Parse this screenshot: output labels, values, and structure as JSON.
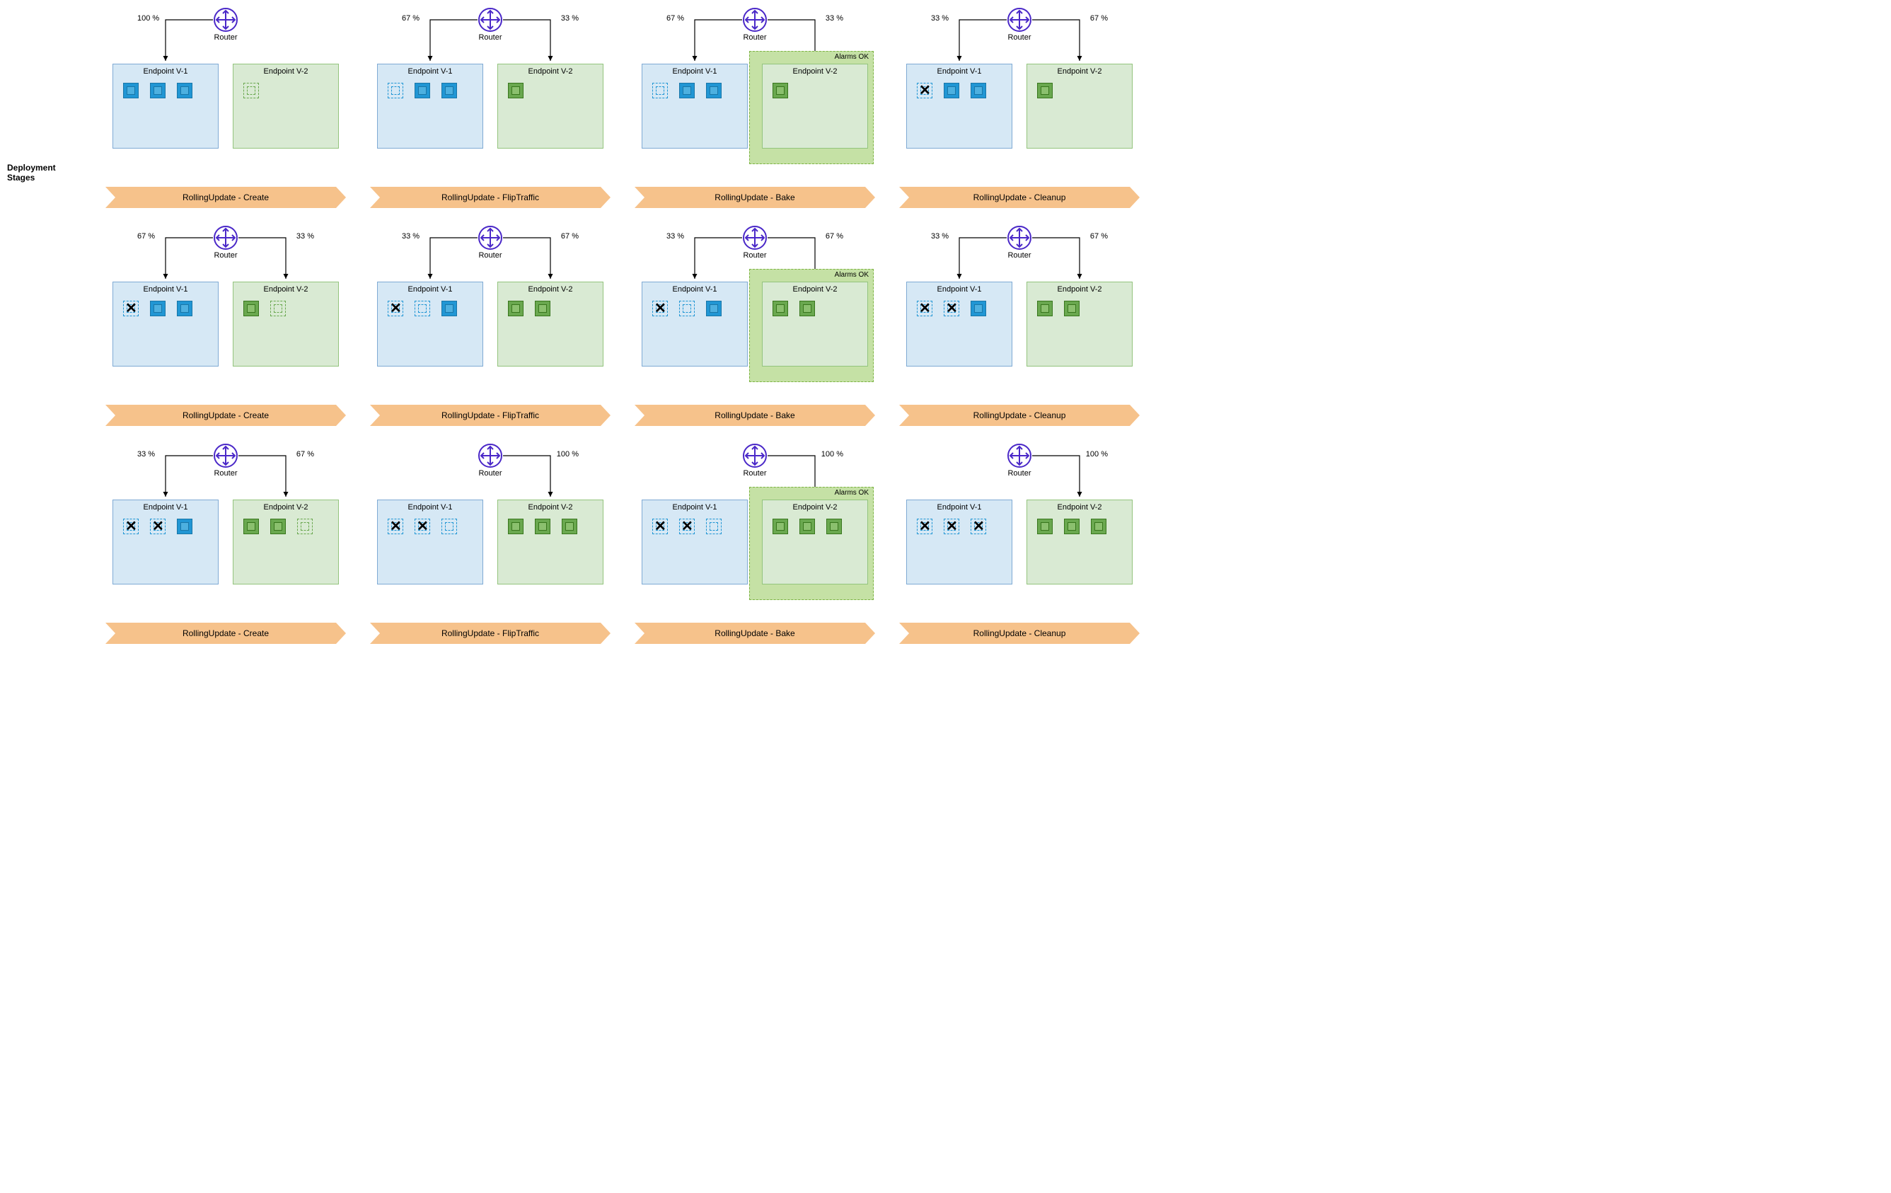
{
  "router_label": "Router",
  "endpoint_v1_label": "Endpoint V-1",
  "endpoint_v2_label": "Endpoint V-2",
  "alarms_ok_label": "Alarms OK",
  "deployment_stages_label": "Deployment Stages",
  "router_icon_color": "#4a28c8",
  "arrow_color": "#000000",
  "blue_box": {
    "fill": "#d6e8f5",
    "stroke": "#7faad4"
  },
  "green_box": {
    "fill": "#d9ead3",
    "stroke": "#93c47d"
  },
  "alarm_box": {
    "fill": "#c5e1a5",
    "stroke": "#7cb342"
  },
  "stage_color": "#f6c28b",
  "chip_blue": {
    "fill": "#2196d4",
    "stroke": "#1976a8"
  },
  "chip_green": {
    "fill": "#6aa84f",
    "stroke": "#38761d"
  },
  "stage_labels": {
    "create": "RollingUpdate - Create",
    "flip": "RollingUpdate - FlipTraffic",
    "bake": "RollingUpdate - Bake",
    "cleanup": "RollingUpdate - Cleanup"
  },
  "rows": [
    {
      "show_row_label": true,
      "cells": [
        {
          "left_pct": "100 %",
          "right_pct": "",
          "left_arrow": true,
          "right_arrow": false,
          "alarm": false,
          "v1": [
            [
              "solid",
              "blue"
            ],
            [
              "solid",
              "blue"
            ],
            [
              "solid",
              "blue"
            ]
          ],
          "v2": [
            [
              "dashed",
              "green"
            ]
          ],
          "stage": "create"
        },
        {
          "left_pct": "67 %",
          "right_pct": "33 %",
          "left_arrow": true,
          "right_arrow": true,
          "alarm": false,
          "v1": [
            [
              "dashed",
              "blue"
            ],
            [
              "solid",
              "blue"
            ],
            [
              "solid",
              "blue"
            ]
          ],
          "v2": [
            [
              "solid",
              "green"
            ]
          ],
          "stage": "flip"
        },
        {
          "left_pct": "67 %",
          "right_pct": "33 %",
          "left_arrow": true,
          "right_arrow": true,
          "alarm": true,
          "v1": [
            [
              "dashed",
              "blue"
            ],
            [
              "solid",
              "blue"
            ],
            [
              "solid",
              "blue"
            ]
          ],
          "v2": [
            [
              "solid",
              "green"
            ]
          ],
          "stage": "bake"
        },
        {
          "left_pct": "33 %",
          "right_pct": "67 %",
          "left_arrow": true,
          "right_arrow": true,
          "alarm": false,
          "v1": [
            [
              "dashed",
              "blue",
              "x"
            ],
            [
              "solid",
              "blue"
            ],
            [
              "solid",
              "blue"
            ]
          ],
          "v2": [
            [
              "solid",
              "green"
            ]
          ],
          "stage": "cleanup"
        }
      ]
    },
    {
      "show_row_label": false,
      "cells": [
        {
          "left_pct": "67 %",
          "right_pct": "33 %",
          "left_arrow": true,
          "right_arrow": true,
          "alarm": false,
          "v1": [
            [
              "dashed",
              "blue",
              "x"
            ],
            [
              "solid",
              "blue"
            ],
            [
              "solid",
              "blue"
            ]
          ],
          "v2": [
            [
              "solid",
              "green"
            ],
            [
              "dashed",
              "green"
            ]
          ],
          "stage": "create"
        },
        {
          "left_pct": "33 %",
          "right_pct": "67 %",
          "left_arrow": true,
          "right_arrow": true,
          "alarm": false,
          "v1": [
            [
              "dashed",
              "blue",
              "x"
            ],
            [
              "dashed",
              "blue"
            ],
            [
              "solid",
              "blue"
            ]
          ],
          "v2": [
            [
              "solid",
              "green"
            ],
            [
              "solid",
              "green"
            ]
          ],
          "stage": "flip"
        },
        {
          "left_pct": "33 %",
          "right_pct": "67 %",
          "left_arrow": true,
          "right_arrow": true,
          "alarm": true,
          "v1": [
            [
              "dashed",
              "blue",
              "x"
            ],
            [
              "dashed",
              "blue"
            ],
            [
              "solid",
              "blue"
            ]
          ],
          "v2": [
            [
              "solid",
              "green"
            ],
            [
              "solid",
              "green"
            ]
          ],
          "stage": "bake"
        },
        {
          "left_pct": "33 %",
          "right_pct": "67 %",
          "left_arrow": true,
          "right_arrow": true,
          "alarm": false,
          "v1": [
            [
              "dashed",
              "blue",
              "x"
            ],
            [
              "dashed",
              "blue",
              "x"
            ],
            [
              "solid",
              "blue"
            ]
          ],
          "v2": [
            [
              "solid",
              "green"
            ],
            [
              "solid",
              "green"
            ]
          ],
          "stage": "cleanup"
        }
      ]
    },
    {
      "show_row_label": false,
      "cells": [
        {
          "left_pct": "33 %",
          "right_pct": "67 %",
          "left_arrow": true,
          "right_arrow": true,
          "alarm": false,
          "v1": [
            [
              "dashed",
              "blue",
              "x"
            ],
            [
              "dashed",
              "blue",
              "x"
            ],
            [
              "solid",
              "blue"
            ]
          ],
          "v2": [
            [
              "solid",
              "green"
            ],
            [
              "solid",
              "green"
            ],
            [
              "dashed",
              "green"
            ]
          ],
          "stage": "create"
        },
        {
          "left_pct": "",
          "right_pct": "100 %",
          "left_arrow": false,
          "right_arrow": true,
          "alarm": false,
          "v1": [
            [
              "dashed",
              "blue",
              "x"
            ],
            [
              "dashed",
              "blue",
              "x"
            ],
            [
              "dashed",
              "blue"
            ]
          ],
          "v2": [
            [
              "solid",
              "green"
            ],
            [
              "solid",
              "green"
            ],
            [
              "solid",
              "green"
            ]
          ],
          "stage": "flip"
        },
        {
          "left_pct": "",
          "right_pct": "100 %",
          "left_arrow": false,
          "right_arrow": true,
          "alarm": true,
          "v1": [
            [
              "dashed",
              "blue",
              "x"
            ],
            [
              "dashed",
              "blue",
              "x"
            ],
            [
              "dashed",
              "blue"
            ]
          ],
          "v2": [
            [
              "solid",
              "green"
            ],
            [
              "solid",
              "green"
            ],
            [
              "solid",
              "green"
            ]
          ],
          "stage": "bake"
        },
        {
          "left_pct": "",
          "right_pct": "100 %",
          "left_arrow": false,
          "right_arrow": true,
          "alarm": false,
          "v1": [
            [
              "dashed",
              "blue",
              "x"
            ],
            [
              "dashed",
              "blue",
              "x"
            ],
            [
              "dashed",
              "blue",
              "x"
            ]
          ],
          "v2": [
            [
              "solid",
              "green"
            ],
            [
              "solid",
              "green"
            ],
            [
              "solid",
              "green"
            ]
          ],
          "stage": "cleanup"
        }
      ]
    }
  ]
}
